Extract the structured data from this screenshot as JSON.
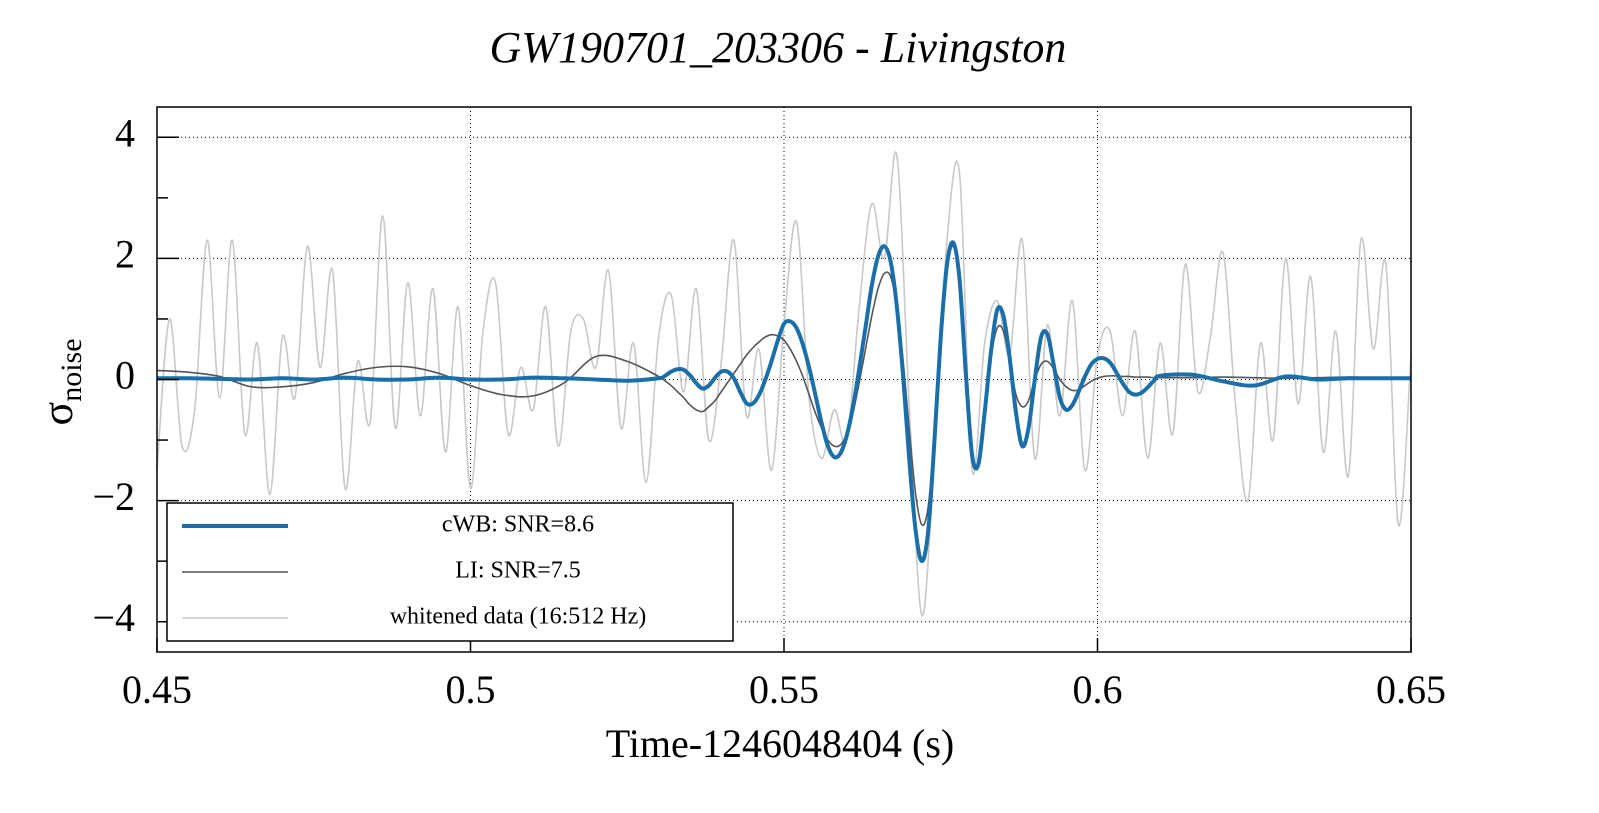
{
  "chart_data": {
    "type": "line",
    "title": "GW190701_203306 - Livingston",
    "xlabel": "Time-1246048404 (s)",
    "ylabel": {
      "symbol": "σ",
      "subscript": "noise"
    },
    "xlim": [
      0.45,
      0.65
    ],
    "ylim": [
      -4.5,
      4.5
    ],
    "xticks": [
      0.45,
      0.5,
      0.55,
      0.6,
      0.65
    ],
    "yticks": [
      {
        "value": -4,
        "label": "−4"
      },
      {
        "value": -2,
        "label": "−2"
      },
      0,
      2,
      4
    ],
    "yminor_ticks": [
      -3,
      -1,
      1,
      3
    ],
    "grid": true,
    "legend": "lower left",
    "x": [
      0.45,
      0.455,
      0.46,
      0.465,
      0.47,
      0.475,
      0.48,
      0.485,
      0.49,
      0.495,
      0.5,
      0.505,
      0.51,
      0.515,
      0.52,
      0.525,
      0.53,
      0.531,
      0.532,
      0.533,
      0.534,
      0.535,
      0.536,
      0.537,
      0.538,
      0.539,
      0.54,
      0.541,
      0.542,
      0.543,
      0.544,
      0.545,
      0.546,
      0.547,
      0.548,
      0.549,
      0.55,
      0.551,
      0.552,
      0.553,
      0.554,
      0.555,
      0.556,
      0.557,
      0.558,
      0.559,
      0.56,
      0.561,
      0.562,
      0.563,
      0.564,
      0.565,
      0.566,
      0.567,
      0.568,
      0.569,
      0.57,
      0.571,
      0.572,
      0.573,
      0.574,
      0.575,
      0.576,
      0.577,
      0.578,
      0.579,
      0.58,
      0.581,
      0.582,
      0.583,
      0.584,
      0.585,
      0.586,
      0.587,
      0.588,
      0.589,
      0.59,
      0.591,
      0.592,
      0.593,
      0.594,
      0.595,
      0.596,
      0.597,
      0.598,
      0.599,
      0.6,
      0.601,
      0.602,
      0.603,
      0.604,
      0.605,
      0.606,
      0.607,
      0.608,
      0.609,
      0.61,
      0.615,
      0.62,
      0.625,
      0.63,
      0.635,
      0.64,
      0.645,
      0.65
    ],
    "series": [
      {
        "name": "whitened data (16:512 Hz)",
        "color": "#c8c8c8",
        "width": 1.6,
        "x": [
          0.45,
          0.452,
          0.454,
          0.456,
          0.458,
          0.46,
          0.462,
          0.464,
          0.466,
          0.468,
          0.47,
          0.472,
          0.474,
          0.476,
          0.478,
          0.48,
          0.482,
          0.484,
          0.486,
          0.488,
          0.49,
          0.492,
          0.494,
          0.496,
          0.498,
          0.5,
          0.502,
          0.504,
          0.506,
          0.508,
          0.51,
          0.512,
          0.514,
          0.516,
          0.518,
          0.52,
          0.522,
          0.524,
          0.526,
          0.528,
          0.53,
          0.532,
          0.534,
          0.536,
          0.538,
          0.54,
          0.542,
          0.544,
          0.546,
          0.548,
          0.55,
          0.552,
          0.554,
          0.556,
          0.558,
          0.56,
          0.562,
          0.564,
          0.566,
          0.568,
          0.57,
          0.572,
          0.574,
          0.576,
          0.578,
          0.58,
          0.582,
          0.584,
          0.586,
          0.588,
          0.59,
          0.592,
          0.594,
          0.596,
          0.598,
          0.6,
          0.602,
          0.604,
          0.606,
          0.608,
          0.61,
          0.612,
          0.614,
          0.616,
          0.618,
          0.62,
          0.622,
          0.624,
          0.626,
          0.628,
          0.63,
          0.632,
          0.634,
          0.636,
          0.638,
          0.64,
          0.642,
          0.644,
          0.646,
          0.648,
          0.65
        ],
        "values": [
          -1.5,
          1.0,
          -1.1,
          -0.5,
          2.3,
          -0.3,
          2.3,
          -0.9,
          0.6,
          -1.9,
          0.7,
          -0.3,
          2.2,
          0.2,
          1.8,
          -1.8,
          0.3,
          -0.7,
          2.7,
          -0.8,
          1.6,
          -0.6,
          1.5,
          -1.2,
          1.2,
          -1.8,
          0.8,
          1.6,
          -0.9,
          0.2,
          -0.5,
          1.2,
          -1.1,
          0.8,
          1.0,
          0.2,
          1.8,
          -0.8,
          0.6,
          -1.7,
          0.7,
          1.4,
          -0.2,
          1.5,
          -1.0,
          0.3,
          2.3,
          -0.6,
          0.5,
          -1.5,
          0.9,
          2.6,
          -0.3,
          -1.3,
          -0.5,
          -1.0,
          1.2,
          2.9,
          2.0,
          3.7,
          -0.5,
          -3.9,
          -1.2,
          2.3,
          3.4,
          -1.5,
          0.6,
          1.3,
          0.4,
          2.3,
          -1.3,
          0.9,
          -0.6,
          1.3,
          -1.5,
          0.4,
          0.8,
          -0.6,
          0.8,
          -1.3,
          0.6,
          -0.9,
          1.9,
          -0.2,
          0.7,
          2.1,
          -0.4,
          -2.0,
          0.6,
          -1.0,
          2.0,
          -0.4,
          1.7,
          -1.2,
          0.8,
          -1.6,
          2.3,
          0.5,
          1.9,
          -2.4,
          0.4
        ]
      },
      {
        "name": "LI: SNR=7.5",
        "color": "#555555",
        "width": 1.6,
        "values": [
          0.15,
          0.12,
          0.05,
          -0.12,
          -0.12,
          -0.05,
          0.1,
          0.2,
          0.21,
          0.1,
          -0.1,
          -0.25,
          -0.27,
          -0.05,
          0.38,
          0.3,
          0.05,
          -0.02,
          -0.1,
          -0.2,
          -0.3,
          -0.42,
          -0.5,
          -0.53,
          -0.45,
          -0.35,
          -0.2,
          -0.05,
          0.1,
          0.25,
          0.4,
          0.52,
          0.62,
          0.7,
          0.74,
          0.72,
          0.65,
          0.5,
          0.3,
          0.05,
          -0.25,
          -0.55,
          -0.8,
          -1.0,
          -1.1,
          -1.08,
          -0.9,
          -0.55,
          -0.05,
          0.5,
          1.05,
          1.5,
          1.75,
          1.7,
          1.2,
          0.3,
          -0.85,
          -1.9,
          -2.4,
          -2.1,
          -0.9,
          0.6,
          1.8,
          2.2,
          1.6,
          0.15,
          -1.2,
          -1.45,
          -0.6,
          0.35,
          0.85,
          0.8,
          0.3,
          -0.25,
          -0.45,
          -0.35,
          0.0,
          0.25,
          0.3,
          0.18,
          0.0,
          -0.12,
          -0.18,
          -0.17,
          -0.1,
          -0.03,
          0.02,
          0.05,
          0.06,
          0.06,
          0.05,
          0.05,
          0.04,
          0.04,
          0.04,
          0.03,
          0.03,
          0.03,
          0.04,
          0.03,
          0.02,
          0.03,
          0.04,
          0.03,
          0.03
        ]
      },
      {
        "name": "cWB: SNR=8.6",
        "color": "#1a6fa8",
        "width": 4,
        "values": [
          0.02,
          0.02,
          0.01,
          0.0,
          0.02,
          0.0,
          0.03,
          0.0,
          0.0,
          0.03,
          0.0,
          0.0,
          0.03,
          0.02,
          0.0,
          -0.02,
          0.02,
          0.06,
          0.13,
          0.17,
          0.16,
          0.07,
          -0.06,
          -0.15,
          -0.1,
          0.03,
          0.13,
          0.13,
          0.02,
          -0.2,
          -0.39,
          -0.4,
          -0.26,
          -0.01,
          0.3,
          0.64,
          0.92,
          0.96,
          0.85,
          0.58,
          0.2,
          -0.25,
          -0.72,
          -1.1,
          -1.28,
          -1.22,
          -0.93,
          -0.45,
          0.18,
          0.86,
          1.55,
          2.03,
          2.2,
          1.95,
          1.2,
          0.05,
          -1.35,
          -2.5,
          -3.0,
          -2.5,
          -1.0,
          0.7,
          1.9,
          2.26,
          1.65,
          0.1,
          -1.25,
          -1.4,
          -0.55,
          0.45,
          1.15,
          1.05,
          0.35,
          -0.55,
          -1.1,
          -0.8,
          0.0,
          0.7,
          0.75,
          0.25,
          -0.3,
          -0.5,
          -0.42,
          -0.2,
          0.05,
          0.25,
          0.34,
          0.35,
          0.28,
          0.12,
          -0.06,
          -0.2,
          -0.25,
          -0.22,
          -0.13,
          -0.02,
          0.06,
          0.08,
          -0.03,
          -0.1,
          0.05,
          0.0,
          0.02,
          0.02,
          0.02
        ]
      }
    ]
  }
}
